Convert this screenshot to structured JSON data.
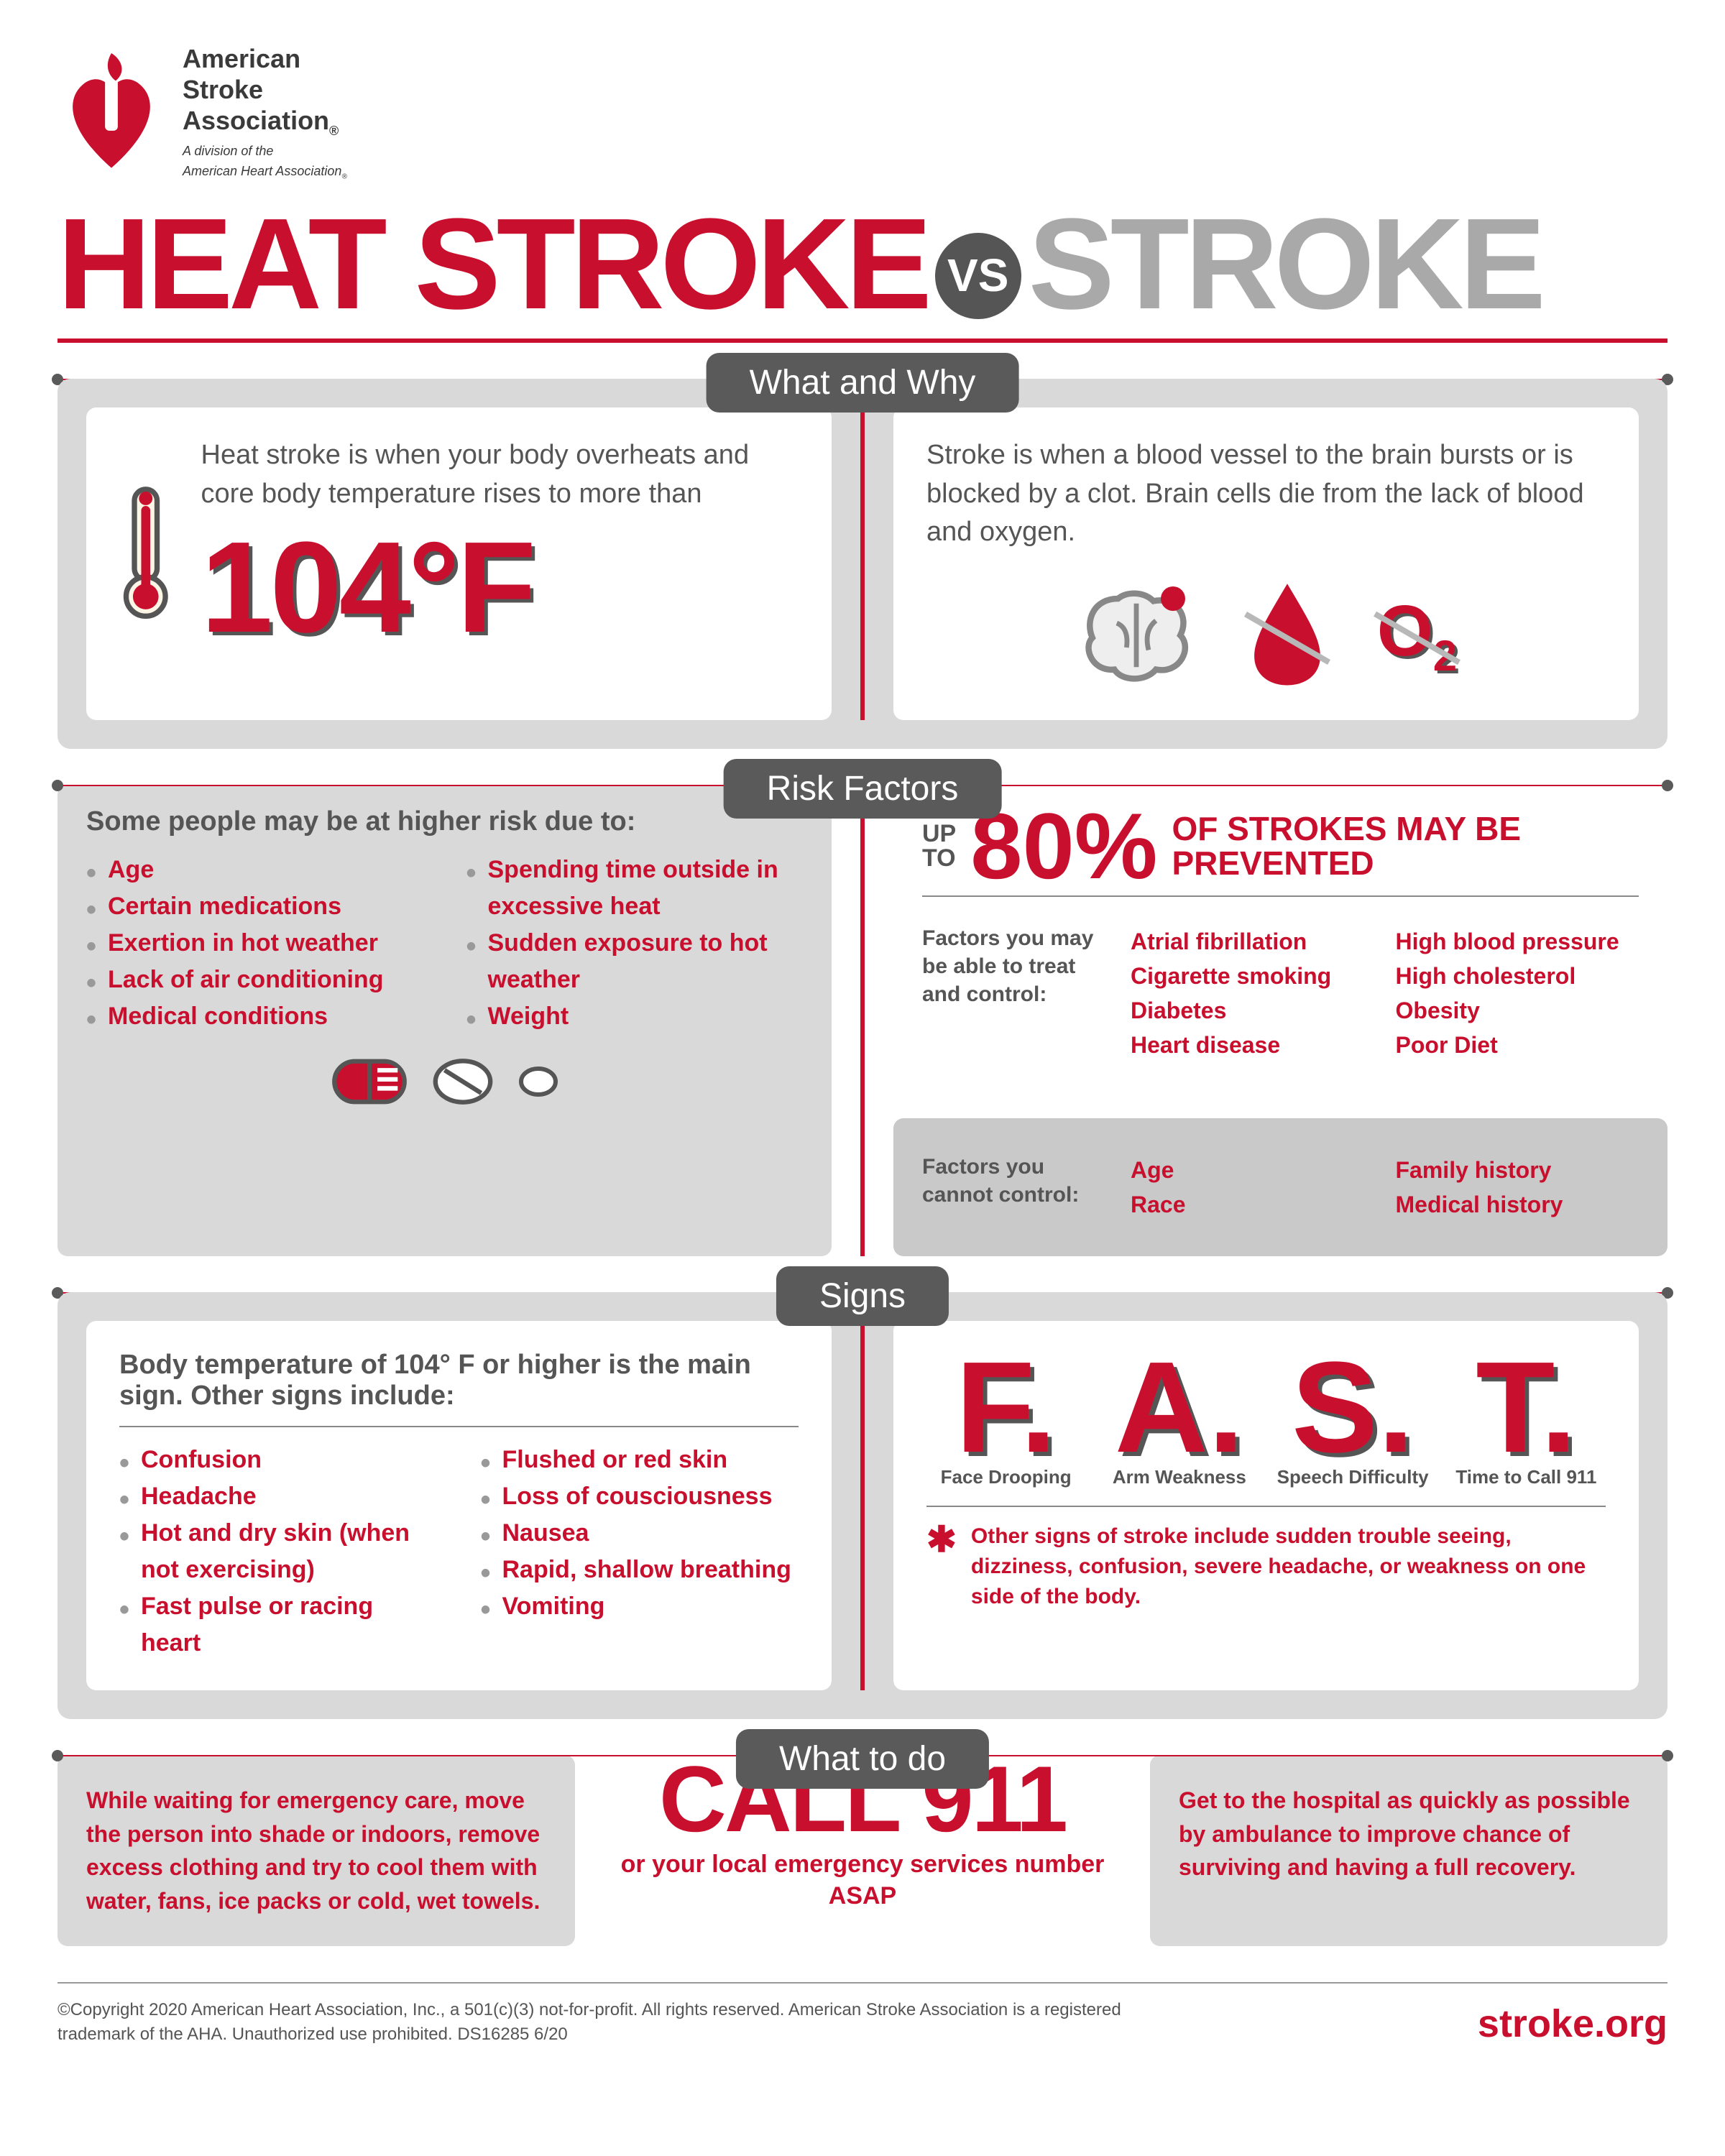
{
  "colors": {
    "red": "#c8102e",
    "grey_text": "#555555",
    "light_grey": "#a9a9a9",
    "panel": "#d9d9d9",
    "inner_panel": "#c9c9c9",
    "pill": "#5a5a5a",
    "white": "#ffffff"
  },
  "header": {
    "org_line1": "American",
    "org_line2": "Stroke",
    "org_line3": "Association",
    "sub1": "A division of the",
    "sub2": "American Heart Association"
  },
  "title": {
    "part1": "HEAT STROKE",
    "vs": "VS",
    "part2": "STROKE"
  },
  "sections": {
    "what": "What and Why",
    "risk": "Risk Factors",
    "signs": "Signs",
    "wtd": "What to do"
  },
  "what": {
    "heat_desc": "Heat stroke is when your body overheats and core body temperature rises to more than",
    "temp": "104°F",
    "stroke_desc": "Stroke is when a blood vessel to the brain bursts or is blocked by a clot. Brain cells die from the lack of blood and oxygen.",
    "o2": "O",
    "o2_sub": "2"
  },
  "risk": {
    "heat_lead": "Some people may be at higher risk due to:",
    "heat_col1": [
      "Age",
      "Certain medications",
      "Exertion in hot weather",
      "Lack of air conditioning",
      "Medical conditions"
    ],
    "heat_col2": [
      "Spending time outside in excessive heat",
      "Sudden exposure to hot weather",
      "Weight"
    ],
    "up_to": "UP TO",
    "pct": "80%",
    "stat_tail": "OF STROKES MAY BE PREVENTED",
    "controllable_label": "Factors you may be able to treat and control:",
    "controllable_col1": [
      "Atrial fibrillation",
      "Cigarette smoking",
      "Diabetes",
      "Heart disease"
    ],
    "controllable_col2": [
      "High blood pressure",
      "High cholesterol",
      "Obesity",
      "Poor Diet"
    ],
    "uncontrollable_label": "Factors you cannot control:",
    "uncontrollable_col1": [
      "Age",
      "Race"
    ],
    "uncontrollable_col2": [
      "Family history",
      "Medical history"
    ]
  },
  "signs": {
    "heat_lead": "Body temperature of 104° F or higher is the main sign. Other signs include:",
    "heat_col1": [
      "Confusion",
      "Headache",
      "Hot and dry skin (when not exercising)",
      "Fast pulse or racing heart"
    ],
    "heat_col2": [
      "Flushed or red skin",
      "Loss of cousciousness",
      "Nausea",
      "Rapid, shallow breathing",
      "Vomiting"
    ],
    "fast": [
      {
        "letter": "F.",
        "cap": "Face Drooping"
      },
      {
        "letter": "A.",
        "cap": "Arm Weakness"
      },
      {
        "letter": "S.",
        "cap": "Speech Difficulty"
      },
      {
        "letter": "T.",
        "cap": "Time to Call 911"
      }
    ],
    "note": "Other signs of stroke include sudden trouble seeing, dizziness, confusion, severe headache, or weakness on one side of the body."
  },
  "wtd": {
    "left": "While waiting for emergency care, move the person into shade or indoors, remove excess clothing and try to cool them with water, fans, ice packs or cold, wet towels.",
    "center_big": "CALL 911",
    "center_sub": "or your local emergency services number ASAP",
    "right": "Get to the hospital as quickly as possible by ambulance to improve chance of surviving and having a full recovery."
  },
  "footer": {
    "copyright": "©Copyright 2020 American Heart Association, Inc., a 501(c)(3) not-for-profit. All rights reserved. American Stroke Association is a registered trademark of the AHA. Unauthorized use prohibited. DS16285 6/20",
    "site": "stroke.org"
  }
}
